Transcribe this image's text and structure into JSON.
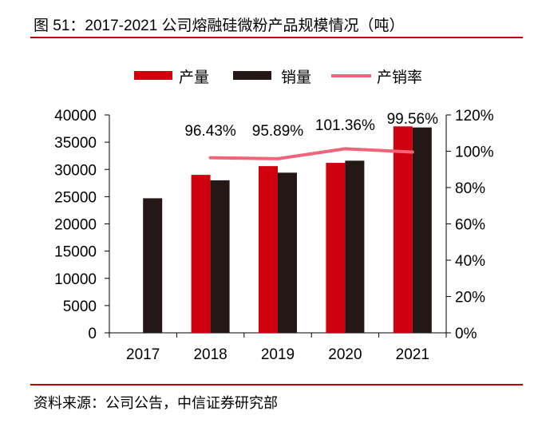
{
  "chart_data": {
    "type": "bar",
    "title": "图 51：2017-2021 公司熔融硅微粉产品规模情况（吨）",
    "categories": [
      "2017",
      "2018",
      "2019",
      "2020",
      "2021"
    ],
    "series": [
      {
        "name": "产量",
        "type": "bar",
        "axis": "left",
        "color": "#d0000f",
        "values": [
          null,
          29000,
          30600,
          31200,
          37900
        ]
      },
      {
        "name": "销量",
        "type": "bar",
        "axis": "left",
        "color": "#231815",
        "values": [
          24700,
          28000,
          29400,
          31600,
          37700
        ]
      },
      {
        "name": "产销率",
        "type": "line",
        "axis": "right",
        "color": "#f06478",
        "values": [
          null,
          96.43,
          95.89,
          101.36,
          99.56
        ],
        "labels": [
          "",
          "96.43%",
          "95.89%",
          "101.36%",
          "99.56%"
        ]
      }
    ],
    "ylim": [
      0,
      40000
    ],
    "yticks": [
      "0",
      "5000",
      "10000",
      "15000",
      "20000",
      "25000",
      "30000",
      "35000",
      "40000"
    ],
    "y2lim": [
      0,
      120
    ],
    "y2ticks": [
      "0%",
      "20%",
      "40%",
      "60%",
      "80%",
      "100%",
      "120%"
    ],
    "legend": "top",
    "grid": false,
    "source": "资料来源：公司公告，中信证券研究部",
    "accent": "#c00000"
  }
}
